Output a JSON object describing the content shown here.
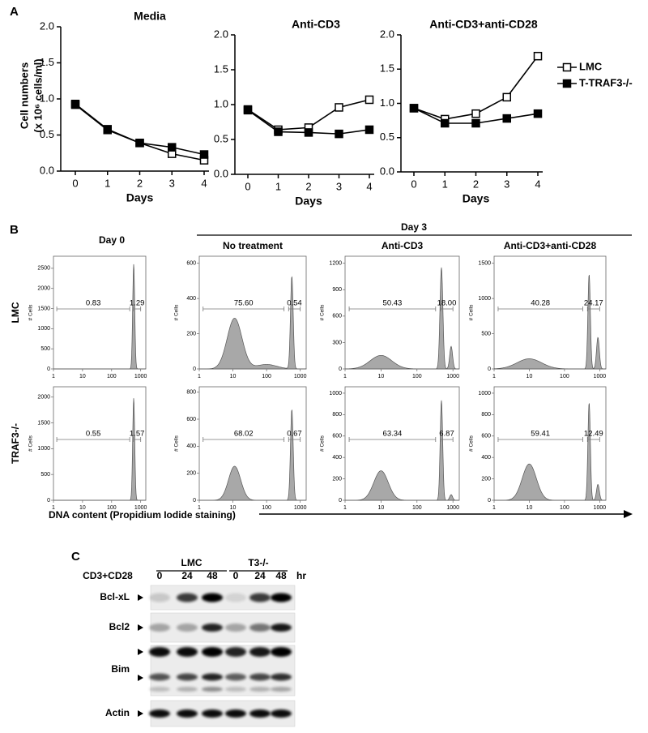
{
  "panel_labels": [
    "A",
    "B",
    "C"
  ],
  "chart_data": [
    {
      "type": "line",
      "title": "Media",
      "ylabel": [
        "Cell numbers",
        "(x 10⁶ cells/ml)"
      ],
      "xlabel": "Days",
      "x": [
        0,
        1,
        2,
        3,
        4
      ],
      "xlim": [
        0,
        4
      ],
      "xticks": [
        0,
        1,
        2,
        3,
        4
      ],
      "ylim": [
        0,
        2
      ],
      "yticks": [
        {
          "value": 0,
          "label": "0.0"
        },
        {
          "value": 0.5,
          "label": "0.5"
        },
        {
          "value": 1,
          "label": "1.0"
        },
        {
          "value": 1.5,
          "label": "1.5"
        },
        {
          "value": 2,
          "label": "2.0"
        }
      ],
      "series": [
        {
          "name": "LMC",
          "color": "#000000",
          "marker": "open-square",
          "values": [
            0.93,
            0.58,
            0.39,
            0.24,
            0.15
          ]
        },
        {
          "name": "T-TRAF3-/-",
          "color": "#000000",
          "marker": "filled-square",
          "values": [
            0.92,
            0.57,
            0.39,
            0.33,
            0.23
          ]
        }
      ]
    },
    {
      "type": "line",
      "title": "Anti-CD3",
      "xlabel": "Days",
      "x": [
        0,
        1,
        2,
        3,
        4
      ],
      "xlim": [
        0,
        4
      ],
      "xticks": [
        0,
        1,
        2,
        3,
        4
      ],
      "ylim": [
        0,
        2
      ],
      "yticks": [
        {
          "value": 0,
          "label": "0.0"
        },
        {
          "value": 0.5,
          "label": "0.5"
        },
        {
          "value": 1,
          "label": "1.0"
        },
        {
          "value": 1.5,
          "label": "1.5"
        },
        {
          "value": 2,
          "label": "2.0"
        }
      ],
      "series": [
        {
          "name": "LMC",
          "color": "#000000",
          "marker": "open-square",
          "values": [
            0.93,
            0.64,
            0.67,
            0.96,
            1.07
          ]
        },
        {
          "name": "T-TRAF3-/-",
          "color": "#000000",
          "marker": "filled-square",
          "values": [
            0.92,
            0.61,
            0.6,
            0.58,
            0.64
          ]
        }
      ]
    },
    {
      "type": "line",
      "title": "Anti-CD3+anti-CD28",
      "xlabel": "Days",
      "legend": "right",
      "x": [
        0,
        1,
        2,
        3,
        4
      ],
      "xlim": [
        0,
        4
      ],
      "xticks": [
        0,
        1,
        2,
        3,
        4
      ],
      "ylim": [
        0,
        2
      ],
      "yticks": [
        {
          "value": 0,
          "label": "0.0"
        },
        {
          "value": 0.5,
          "label": "0.5"
        },
        {
          "value": 1,
          "label": "1.0"
        },
        {
          "value": 1.5,
          "label": "1.5"
        },
        {
          "value": 2,
          "label": "2.0"
        }
      ],
      "series": [
        {
          "name": "LMC",
          "color": "#000000",
          "marker": "open-square",
          "values": [
            0.93,
            0.77,
            0.85,
            1.09,
            1.69
          ]
        },
        {
          "name": "T-TRAF3-/-",
          "color": "#000000",
          "marker": "filled-square",
          "values": [
            0.93,
            0.71,
            0.71,
            0.78,
            0.85
          ]
        }
      ]
    }
  ],
  "panel_b": {
    "day0_title": "Day 0",
    "day3_title": "Day 3",
    "column_titles": [
      "No treatment",
      "Anti-CD3",
      "Anti-CD3+anti-CD28"
    ],
    "row_labels": [
      "LMC",
      "TRAF3-/-"
    ],
    "y_axis_label": "# Cells",
    "x_axis_label": "DNA content (Propidium Iodide staining)",
    "xlim": [
      1,
      1500
    ],
    "xticks": [
      1,
      10,
      100,
      1000
    ],
    "plots": [
      [
        {
          "ylim": [
            0,
            2800
          ],
          "yticks": [
            0,
            500,
            1000,
            1500,
            2000,
            2500
          ],
          "gates": [
            "0.83",
            "1.29"
          ]
        },
        {
          "ylim": [
            0,
            640
          ],
          "yticks": [
            0,
            200,
            400,
            600
          ],
          "gates": [
            "75.60",
            "0.54"
          ]
        },
        {
          "ylim": [
            0,
            1280
          ],
          "yticks": [
            0,
            300,
            600,
            900,
            1200
          ],
          "gates": [
            "50.43",
            "18.00"
          ]
        },
        {
          "ylim": [
            0,
            1600
          ],
          "yticks": [
            0,
            500,
            1000,
            1500
          ],
          "gates": [
            "40.28",
            "24.17"
          ]
        }
      ],
      [
        {
          "ylim": [
            0,
            2200
          ],
          "yticks": [
            0,
            500,
            1000,
            1500,
            2000
          ],
          "gates": [
            "0.55",
            "1.57"
          ]
        },
        {
          "ylim": [
            0,
            840
          ],
          "yticks": [
            0,
            200,
            400,
            600,
            800
          ],
          "gates": [
            "68.02",
            "0.67"
          ]
        },
        {
          "ylim": [
            0,
            1060
          ],
          "yticks": [
            0,
            200,
            400,
            600,
            800,
            1000
          ],
          "gates": [
            "63.34",
            "6.87"
          ]
        },
        {
          "ylim": [
            0,
            1060
          ],
          "yticks": [
            0,
            200,
            400,
            600,
            800,
            1000
          ],
          "gates": [
            "59.41",
            "12.49"
          ]
        }
      ]
    ]
  },
  "panel_c": {
    "groups": [
      "LMC",
      "T3-/-"
    ],
    "treatment": "CD3+CD28",
    "timepoints": [
      "0",
      "24",
      "48",
      "0",
      "24",
      "48"
    ],
    "unit": "hr",
    "bands": [
      "Bcl-xL",
      "Bcl2",
      "Bim",
      "Actin"
    ]
  }
}
